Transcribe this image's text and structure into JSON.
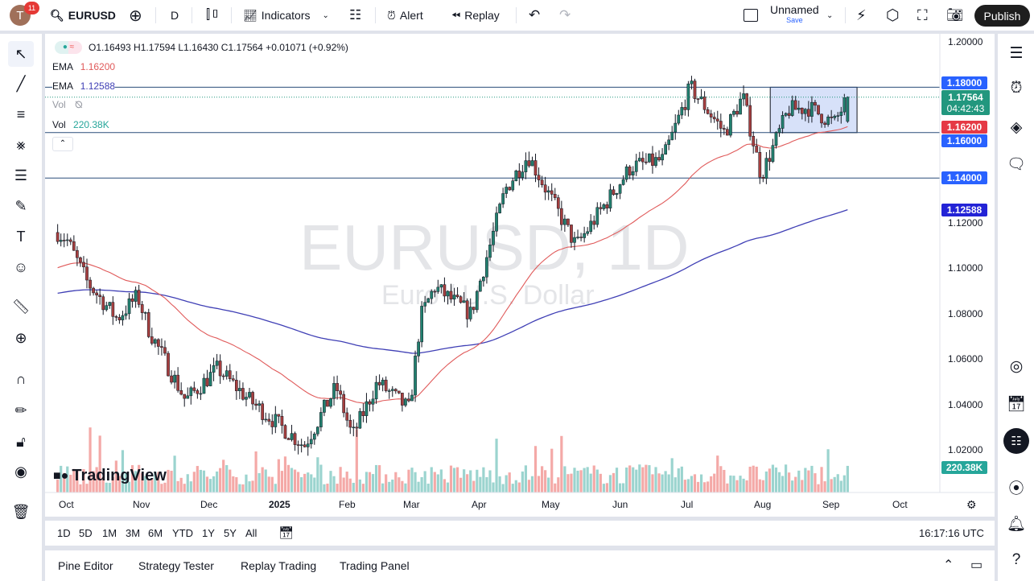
{
  "header": {
    "avatar_letter": "T",
    "notification_count": "11",
    "symbol": "EURUSD",
    "interval": "D",
    "indicators_label": "Indicators",
    "alert_label": "Alert",
    "replay_label": "Replay",
    "layout_name": "Unnamed",
    "layout_save": "Save",
    "publish_label": "Publish"
  },
  "legend": {
    "ohlc": "O1.16493 H1.17594 L1.16430 C1.17564 +0.01071 (+0.92%)",
    "ema1_label": "EMA",
    "ema1_value": "1.16200",
    "ema2_label": "EMA",
    "ema2_value": "1.12588",
    "vol_hidden_label": "Vol",
    "vol_label": "Vol",
    "vol_value": "220.38K"
  },
  "watermark": {
    "title": "EURUSD, 1D",
    "subtitle": "Euro / U.S. Dollar"
  },
  "logo": "TradingView",
  "price_axis": {
    "ticks": [
      "1.20000",
      "1.12000",
      "1.10000",
      "1.08000",
      "1.06000",
      "1.04000",
      "1.02000"
    ],
    "labels": {
      "level_118": "1.18000",
      "current_price": "1.17564",
      "countdown": "04:42:43",
      "ema50": "1.16200",
      "level_116": "1.16000",
      "level_114": "1.14000",
      "ema200": "1.12588",
      "volume": "220.38K"
    }
  },
  "time_axis": [
    "Oct",
    "Nov",
    "Dec",
    "2025",
    "Feb",
    "Mar",
    "Apr",
    "May",
    "Jun",
    "Jul",
    "Aug",
    "Sep",
    "Oct"
  ],
  "ranges": [
    "1D",
    "5D",
    "1M",
    "3M",
    "6M",
    "YTD",
    "1Y",
    "5Y",
    "All"
  ],
  "clock": "16:17:16 UTC",
  "bottom_tabs": [
    "Pine Editor",
    "Strategy Tester",
    "Replay Trading",
    "Trading Panel"
  ],
  "colors": {
    "up": "#26a69a",
    "down": "#ef5350",
    "ema50": "#e05a5a",
    "ema200": "#3f3fb5",
    "level_line": "#2a4d7a",
    "box": "#c9d7f7",
    "accent": "#2962ff"
  },
  "chart_data": {
    "type": "candlestick",
    "approx_close_path": [
      [
        "2024-09-27",
        1.116
      ],
      [
        "2024-10-01",
        1.113
      ],
      [
        "2024-10-10",
        1.094
      ],
      [
        "2024-10-23",
        1.078
      ],
      [
        "2024-11-01",
        1.088
      ],
      [
        "2024-11-06",
        1.073
      ],
      [
        "2024-11-22",
        1.042
      ],
      [
        "2024-12-06",
        1.056
      ],
      [
        "2024-12-20",
        1.042
      ],
      [
        "2025-01-13",
        1.022
      ],
      [
        "2025-01-27",
        1.048
      ],
      [
        "2025-02-03",
        1.026
      ],
      [
        "2025-02-14",
        1.05
      ],
      [
        "2025-02-28",
        1.038
      ],
      [
        "2025-03-05",
        1.079
      ],
      [
        "2025-03-11",
        1.092
      ],
      [
        "2025-03-27",
        1.08
      ],
      [
        "2025-04-11",
        1.135
      ],
      [
        "2025-04-21",
        1.15
      ],
      [
        "2025-05-12",
        1.11
      ],
      [
        "2025-06-05",
        1.145
      ],
      [
        "2025-06-19",
        1.148
      ],
      [
        "2025-07-01",
        1.18
      ],
      [
        "2025-07-16",
        1.16
      ],
      [
        "2025-07-24",
        1.176
      ],
      [
        "2025-08-01",
        1.141
      ],
      [
        "2025-08-13",
        1.17
      ],
      [
        "2025-08-22",
        1.171
      ],
      [
        "2025-09-02",
        1.164
      ],
      [
        "2025-09-08",
        1.1756
      ]
    ],
    "horizontal_levels": [
      1.18,
      1.16,
      1.14
    ],
    "range_box": {
      "from": "2025-08-05",
      "to": "2025-09-12",
      "top": 1.18,
      "bottom": 1.16
    },
    "ylim": [
      1.005,
      1.2
    ]
  }
}
